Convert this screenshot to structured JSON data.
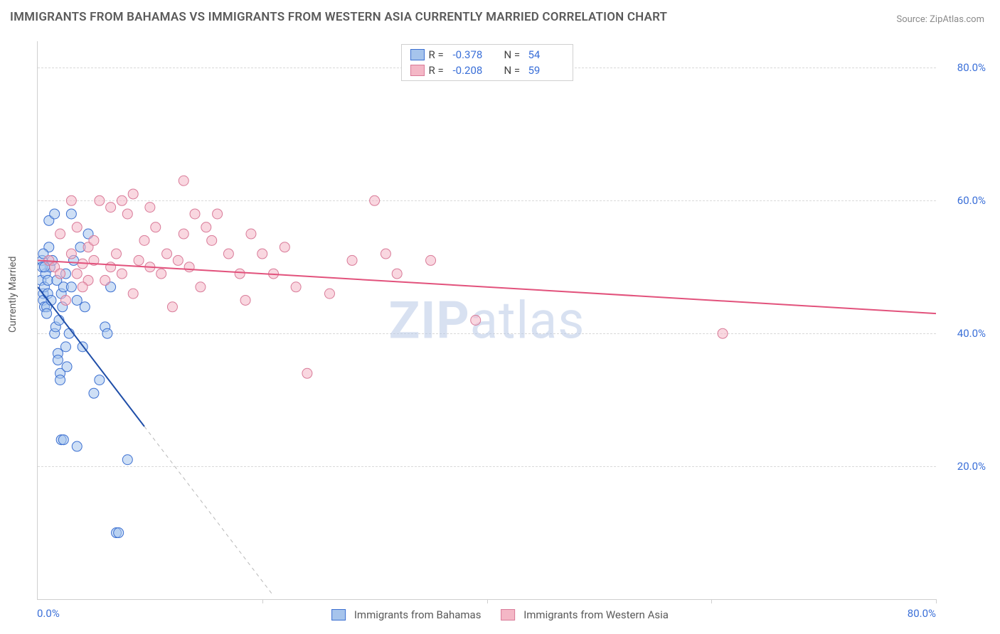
{
  "title": "IMMIGRANTS FROM BAHAMAS VS IMMIGRANTS FROM WESTERN ASIA CURRENTLY MARRIED CORRELATION CHART",
  "source": "Source: ZipAtlas.com",
  "watermark": "ZIPatlas",
  "watermark_bold_part": "ZIP",
  "watermark_rest": "atlas",
  "chart": {
    "type": "scatter-with-regression",
    "xlim": [
      0,
      80
    ],
    "ylim": [
      0,
      84
    ],
    "x_origin_label": "0.0%",
    "x_max_label": "80.0%",
    "y_ticks": [
      20,
      40,
      60,
      80
    ],
    "y_tick_labels": [
      "20.0%",
      "40.0%",
      "60.0%",
      "80.0%"
    ],
    "x_ticks": [
      20,
      40,
      60,
      80
    ],
    "ylabel": "Currently Married",
    "grid": {
      "y": true,
      "x_ticks_only": true,
      "color": "#d9d9d9",
      "dash": true
    },
    "background_color": "#ffffff",
    "axis_color": "#cfcfcf",
    "label_color": "#5a5a5a",
    "tick_label_color": "#3a6fd8",
    "marker_radius": 7,
    "marker_opacity": 0.55,
    "series": [
      {
        "name": "Immigrants from Bahamas",
        "fill": "#a6c4ec",
        "stroke": "#3b6fd1",
        "line_color": "#1f4ea8",
        "line_width": 2,
        "R": -0.378,
        "N": 54,
        "regression": {
          "x1": 0,
          "y1": 47,
          "x2": 9.5,
          "y2": 26
        },
        "extrapolation": {
          "x1": 9.5,
          "y1": 26,
          "x2": 21,
          "y2": 0.5,
          "dash": true
        },
        "points": [
          [
            0.3,
            48
          ],
          [
            0.5,
            46
          ],
          [
            0.5,
            45
          ],
          [
            0.6,
            47
          ],
          [
            0.6,
            44
          ],
          [
            0.7,
            49
          ],
          [
            0.8,
            44
          ],
          [
            0.8,
            43
          ],
          [
            0.9,
            46
          ],
          [
            0.9,
            48
          ],
          [
            1.0,
            57
          ],
          [
            1.0,
            53
          ],
          [
            1.1,
            50
          ],
          [
            1.2,
            45
          ],
          [
            1.3,
            51
          ],
          [
            1.5,
            58
          ],
          [
            1.5,
            40
          ],
          [
            1.6,
            41
          ],
          [
            1.7,
            48
          ],
          [
            1.8,
            37
          ],
          [
            1.8,
            36
          ],
          [
            1.9,
            42
          ],
          [
            2.0,
            34
          ],
          [
            2.0,
            33
          ],
          [
            2.1,
            46
          ],
          [
            2.2,
            44
          ],
          [
            2.3,
            47
          ],
          [
            2.5,
            49
          ],
          [
            2.5,
            38
          ],
          [
            2.6,
            35
          ],
          [
            2.8,
            40
          ],
          [
            3.0,
            47
          ],
          [
            3.0,
            58
          ],
          [
            3.2,
            51
          ],
          [
            3.5,
            45
          ],
          [
            3.5,
            23
          ],
          [
            4.0,
            38
          ],
          [
            4.2,
            44
          ],
          [
            4.5,
            55
          ],
          [
            5.0,
            31
          ],
          [
            5.5,
            33
          ],
          [
            6.0,
            41
          ],
          [
            6.2,
            40
          ],
          [
            6.5,
            47
          ],
          [
            7.0,
            10
          ],
          [
            7.2,
            10
          ],
          [
            8.0,
            21
          ],
          [
            2.1,
            24
          ],
          [
            2.3,
            24
          ],
          [
            0.4,
            51
          ],
          [
            0.4,
            50
          ],
          [
            0.5,
            52
          ],
          [
            0.6,
            50
          ],
          [
            3.8,
            53
          ]
        ]
      },
      {
        "name": "Immigrants from Western Asia",
        "fill": "#f4b7c6",
        "stroke": "#d97a98",
        "line_color": "#e2527c",
        "line_width": 2,
        "R": -0.208,
        "N": 59,
        "regression": {
          "x1": 0,
          "y1": 51,
          "x2": 80,
          "y2": 43
        },
        "points": [
          [
            1,
            51
          ],
          [
            1.5,
            50
          ],
          [
            2,
            49
          ],
          [
            2,
            55
          ],
          [
            2.5,
            45
          ],
          [
            3,
            60
          ],
          [
            3,
            52
          ],
          [
            3.5,
            49
          ],
          [
            3.5,
            56
          ],
          [
            4,
            50.5
          ],
          [
            4.5,
            48
          ],
          [
            4.5,
            53
          ],
          [
            5,
            51
          ],
          [
            5,
            54
          ],
          [
            5.5,
            60
          ],
          [
            6,
            48
          ],
          [
            6.5,
            50
          ],
          [
            6.5,
            59
          ],
          [
            7,
            52
          ],
          [
            7.5,
            49
          ],
          [
            7.5,
            60
          ],
          [
            8,
            58
          ],
          [
            8.5,
            46
          ],
          [
            8.5,
            61
          ],
          [
            9,
            51
          ],
          [
            9.5,
            54
          ],
          [
            10,
            59
          ],
          [
            10,
            50
          ],
          [
            10.5,
            56
          ],
          [
            11,
            49
          ],
          [
            11.5,
            52
          ],
          [
            12,
            44
          ],
          [
            12.5,
            51
          ],
          [
            13,
            63
          ],
          [
            13,
            55
          ],
          [
            13.5,
            50
          ],
          [
            14,
            58
          ],
          [
            14.5,
            47
          ],
          [
            15,
            56
          ],
          [
            15.5,
            54
          ],
          [
            16,
            58
          ],
          [
            17,
            52
          ],
          [
            18,
            49
          ],
          [
            18.5,
            45
          ],
          [
            19,
            55
          ],
          [
            20,
            52
          ],
          [
            21,
            49
          ],
          [
            22,
            53
          ],
          [
            23,
            47
          ],
          [
            24,
            34
          ],
          [
            26,
            46
          ],
          [
            28,
            51
          ],
          [
            30,
            60
          ],
          [
            31,
            52
          ],
          [
            32,
            49
          ],
          [
            35,
            51
          ],
          [
            39,
            42
          ],
          [
            61,
            40
          ],
          [
            4,
            47
          ]
        ]
      }
    ],
    "legend_top": {
      "R_label": "R =",
      "N_label": "N ="
    },
    "legend_bottom": true
  }
}
